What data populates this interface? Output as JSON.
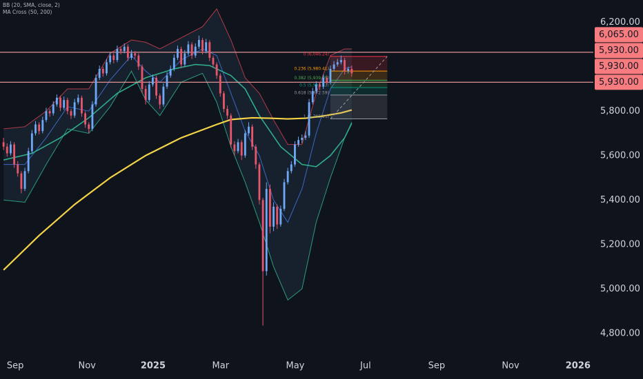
{
  "chart_data": {
    "type": "candlestick",
    "indicators": [
      "BB (20, SMA, close, 2)",
      "MA Cross (50, 200)"
    ],
    "up_color": "#6fa8f5",
    "down_color": "#e8566c",
    "xlim": [
      -1,
      166
    ],
    "ylim": [
      4700,
      6300
    ],
    "xticks": [
      {
        "value": 3.3,
        "label": "Sep"
      },
      {
        "value": 23.5,
        "label": "Nov"
      },
      {
        "value": 42.1,
        "label": "2025"
      },
      {
        "value": 61.1,
        "label": "Mar"
      },
      {
        "value": 82.1,
        "label": "May"
      },
      {
        "value": 101.9,
        "label": "Jul"
      },
      {
        "value": 121.9,
        "label": "Sep"
      },
      {
        "value": 142.7,
        "label": "Nov"
      },
      {
        "value": 161.7,
        "label": "2026"
      }
    ],
    "yticks": [
      {
        "value": 6200,
        "label": "6,200.00"
      },
      {
        "value": 5800,
        "label": "5,800.00"
      },
      {
        "value": 5600,
        "label": "5,600.00"
      },
      {
        "value": 5400,
        "label": "5,400.00"
      },
      {
        "value": 5200,
        "label": "5,200.00"
      },
      {
        "value": 5000,
        "label": "5,000.00"
      },
      {
        "value": 4800,
        "label": "4,800.00"
      }
    ],
    "candles": [
      [
        5660,
        5680,
        5625,
        5640
      ],
      [
        5640,
        5655,
        5595,
        5610
      ],
      [
        5610,
        5665,
        5600,
        5650
      ],
      [
        5650,
        5660,
        5545,
        5560
      ],
      [
        5560,
        5575,
        5505,
        5520
      ],
      [
        5520,
        5530,
        5430,
        5450
      ],
      [
        5450,
        5545,
        5440,
        5530
      ],
      [
        5530,
        5635,
        5520,
        5620
      ],
      [
        5620,
        5715,
        5610,
        5700
      ],
      [
        5700,
        5755,
        5690,
        5740
      ],
      [
        5740,
        5750,
        5695,
        5710
      ],
      [
        5710,
        5775,
        5700,
        5760
      ],
      [
        5760,
        5815,
        5750,
        5800
      ],
      [
        5800,
        5810,
        5775,
        5790
      ],
      [
        5790,
        5845,
        5780,
        5830
      ],
      [
        5830,
        5875,
        5820,
        5860
      ],
      [
        5860,
        5870,
        5800,
        5815
      ],
      [
        5815,
        5865,
        5805,
        5850
      ],
      [
        5850,
        5860,
        5785,
        5800
      ],
      [
        5800,
        5810,
        5765,
        5780
      ],
      [
        5780,
        5855,
        5770,
        5840
      ],
      [
        5840,
        5875,
        5830,
        5860
      ],
      [
        5860,
        5870,
        5775,
        5790
      ],
      [
        5790,
        5800,
        5725,
        5740
      ],
      [
        5740,
        5750,
        5700,
        5720
      ],
      [
        5720,
        5845,
        5710,
        5830
      ],
      [
        5830,
        5965,
        5820,
        5950
      ],
      [
        5950,
        6005,
        5940,
        5990
      ],
      [
        5990,
        6000,
        5955,
        5970
      ],
      [
        5970,
        6035,
        5960,
        6020
      ],
      [
        6020,
        6065,
        6010,
        6050
      ],
      [
        6050,
        6060,
        6015,
        6030
      ],
      [
        6030,
        6095,
        6020,
        6080
      ],
      [
        6080,
        6090,
        6055,
        6070
      ],
      [
        6070,
        6105,
        6060,
        6090
      ],
      [
        6090,
        6100,
        6025,
        6040
      ],
      [
        6040,
        6075,
        6030,
        6060
      ],
      [
        6060,
        6070,
        6035,
        6050
      ],
      [
        6050,
        6060,
        5985,
        6000
      ],
      [
        6000,
        6010,
        5880,
        5900
      ],
      [
        5900,
        5915,
        5830,
        5850
      ],
      [
        5850,
        5935,
        5840,
        5920
      ],
      [
        5920,
        5965,
        5910,
        5950
      ],
      [
        5950,
        5960,
        5855,
        5870
      ],
      [
        5870,
        5880,
        5810,
        5830
      ],
      [
        5830,
        5925,
        5820,
        5910
      ],
      [
        5910,
        5975,
        5900,
        5960
      ],
      [
        5960,
        6005,
        5950,
        5990
      ],
      [
        5990,
        6055,
        5980,
        6040
      ],
      [
        6040,
        6095,
        6030,
        6080
      ],
      [
        6080,
        6090,
        5995,
        6010
      ],
      [
        6010,
        6075,
        6000,
        6060
      ],
      [
        6060,
        6115,
        6050,
        6100
      ],
      [
        6100,
        6110,
        6035,
        6050
      ],
      [
        6050,
        6105,
        6040,
        6090
      ],
      [
        6090,
        6140,
        6080,
        6120
      ],
      [
        6120,
        6130,
        6055,
        6070
      ],
      [
        6070,
        6125,
        6060,
        6110
      ],
      [
        6110,
        6120,
        6025,
        6040
      ],
      [
        6040,
        6050,
        5995,
        6010
      ],
      [
        6010,
        6020,
        5945,
        5960
      ],
      [
        5960,
        5970,
        5865,
        5880
      ],
      [
        5880,
        5890,
        5795,
        5810
      ],
      [
        5810,
        5825,
        5765,
        5780
      ],
      [
        5780,
        5790,
        5635,
        5650
      ],
      [
        5650,
        5665,
        5600,
        5620
      ],
      [
        5620,
        5675,
        5610,
        5660
      ],
      [
        5660,
        5670,
        5580,
        5600
      ],
      [
        5600,
        5715,
        5590,
        5700
      ],
      [
        5700,
        5750,
        5690,
        5730
      ],
      [
        5730,
        5740,
        5625,
        5640
      ],
      [
        5640,
        5650,
        5540,
        5560
      ],
      [
        5560,
        5570,
        5380,
        5400
      ],
      [
        5400,
        5410,
        4835,
        5080
      ],
      [
        5080,
        5480,
        5060,
        5450
      ],
      [
        5450,
        5470,
        5250,
        5280
      ],
      [
        5280,
        5390,
        5260,
        5370
      ],
      [
        5370,
        5380,
        5270,
        5290
      ],
      [
        5290,
        5375,
        5280,
        5360
      ],
      [
        5360,
        5495,
        5350,
        5480
      ],
      [
        5480,
        5545,
        5470,
        5530
      ],
      [
        5530,
        5575,
        5520,
        5560
      ],
      [
        5560,
        5665,
        5550,
        5650
      ],
      [
        5650,
        5685,
        5640,
        5670
      ],
      [
        5670,
        5695,
        5655,
        5680
      ],
      [
        5680,
        5710,
        5670,
        5690
      ],
      [
        5690,
        5855,
        5680,
        5840
      ],
      [
        5840,
        5905,
        5830,
        5890
      ],
      [
        5890,
        5935,
        5880,
        5920
      ],
      [
        5920,
        5930,
        5895,
        5910
      ],
      [
        5910,
        5965,
        5900,
        5950
      ],
      [
        5950,
        5960,
        5915,
        5930
      ],
      [
        5930,
        6005,
        5920,
        5990
      ],
      [
        5990,
        6025,
        5980,
        6010
      ],
      [
        6010,
        6035,
        6000,
        6020
      ],
      [
        6020,
        6050,
        6010,
        6030
      ],
      [
        6030,
        6040,
        5965,
        5980
      ],
      [
        5980,
        6000,
        5970,
        5990
      ],
      [
        5990,
        6005,
        5955,
        5970
      ]
    ],
    "bb": {
      "x": [
        0,
        6,
        12,
        18,
        24,
        30,
        36,
        40,
        44,
        50,
        56,
        60,
        64,
        68,
        72,
        76,
        80,
        84,
        88,
        92,
        96,
        98
      ],
      "upper": [
        5720,
        5730,
        5800,
        5900,
        5900,
        6060,
        6120,
        6110,
        6080,
        6130,
        6180,
        6260,
        6120,
        5950,
        5880,
        5760,
        5650,
        5650,
        5880,
        6050,
        6080,
        6080
      ],
      "basis": [
        5560,
        5560,
        5680,
        5820,
        5800,
        5940,
        6050,
        5980,
        5930,
        6030,
        6080,
        6050,
        5880,
        5710,
        5600,
        5400,
        5300,
        5450,
        5700,
        5900,
        5990,
        6000
      ],
      "lower": [
        5400,
        5390,
        5560,
        5720,
        5700,
        5820,
        5980,
        5850,
        5780,
        5930,
        5970,
        5840,
        5640,
        5480,
        5300,
        5100,
        4950,
        5000,
        5300,
        5500,
        5680,
        5750
      ]
    },
    "ma50": {
      "color": "#2fae8c",
      "x": [
        0,
        8,
        16,
        24,
        32,
        40,
        48,
        54,
        58,
        64,
        68,
        72,
        78,
        84,
        88,
        92,
        96,
        98
      ],
      "values": [
        5580,
        5610,
        5680,
        5770,
        5880,
        5950,
        5990,
        6010,
        6005,
        5960,
        5900,
        5780,
        5640,
        5560,
        5550,
        5600,
        5680,
        5745
      ]
    },
    "ma200": {
      "color": "#f5d547",
      "x": [
        0,
        10,
        20,
        30,
        40,
        50,
        60,
        64,
        70,
        75,
        80,
        85,
        90,
        95,
        98
      ],
      "values": [
        5085,
        5240,
        5380,
        5500,
        5600,
        5680,
        5740,
        5762,
        5770,
        5768,
        5765,
        5768,
        5778,
        5792,
        5805
      ]
    },
    "fib": {
      "x": [
        92,
        108
      ],
      "prices": [
        6046.24,
        5980.41,
        5939.05,
        5905.82,
        5872.59,
        5765.23
      ],
      "labels": [
        "0 (6,046.24)",
        "0.236 (5,980.41)",
        "0.382 (5,939.05)",
        "0.5 (5,905.82)",
        "0.618 (5,872.59)",
        "1 (5,765.23)"
      ],
      "colors": [
        "#f23645",
        "#ff9800",
        "#4caf50",
        "#089981",
        "#9598a1"
      ]
    },
    "hlines": {
      "color": "#f7a1a1",
      "values": [
        6065,
        5930
      ]
    },
    "price_labels": [
      {
        "value": 6065,
        "label": "6,065.00"
      },
      {
        "value": 5930,
        "label": "5,930.00"
      },
      {
        "value": 5930,
        "label": "5,930.00"
      },
      {
        "value": 5930,
        "label": "5,930.00"
      }
    ]
  }
}
